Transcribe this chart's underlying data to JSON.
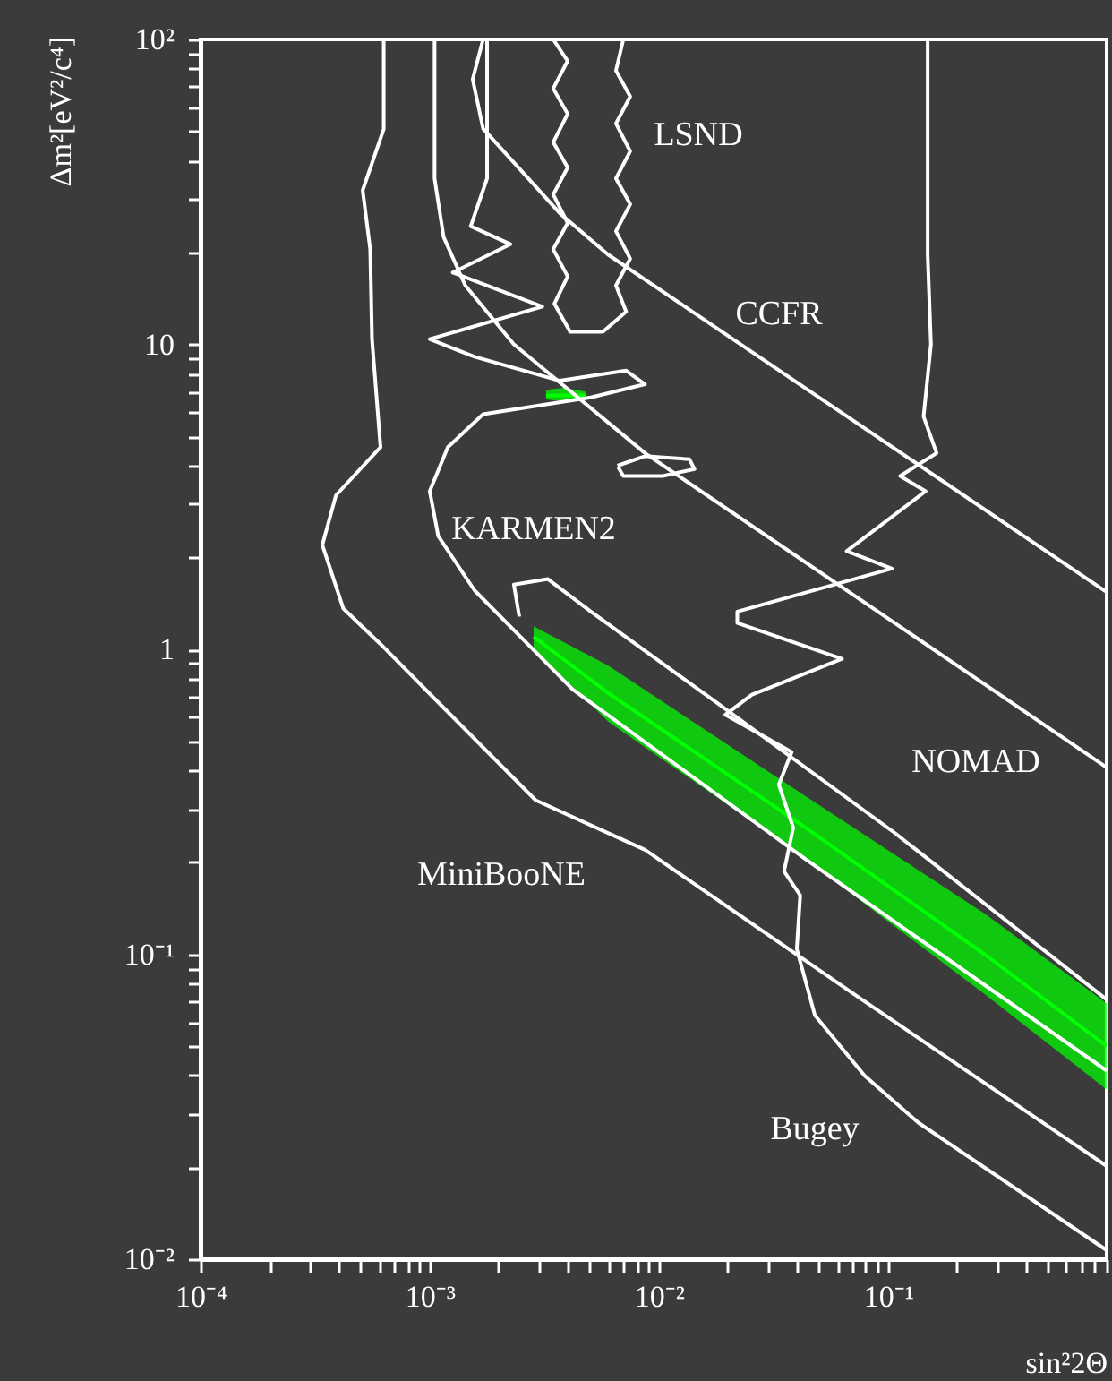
{
  "chart_data": {
    "type": "line",
    "log": "xy",
    "grid": false,
    "xlabel": "sin²2Θ",
    "ylabel": "Δm²[eV²/c⁴]",
    "xlim": [
      0.0001,
      0.9
    ],
    "ylim": [
      0.01,
      100
    ],
    "xticks": [
      {
        "value": 0.0001,
        "label": "10⁻⁴"
      },
      {
        "value": 0.0002,
        "label": null
      },
      {
        "value": 0.0003,
        "label": null
      },
      {
        "value": 0.0004,
        "label": null
      },
      {
        "value": 0.0005,
        "label": null
      },
      {
        "value": 0.0006,
        "label": null
      },
      {
        "value": 0.0007,
        "label": null
      },
      {
        "value": 0.0008,
        "label": null
      },
      {
        "value": 0.0009,
        "label": null
      },
      {
        "value": 0.001,
        "label": "10⁻³"
      },
      {
        "value": 0.002,
        "label": null
      },
      {
        "value": 0.003,
        "label": null
      },
      {
        "value": 0.004,
        "label": null
      },
      {
        "value": 0.005,
        "label": null
      },
      {
        "value": 0.006,
        "label": null
      },
      {
        "value": 0.007,
        "label": null
      },
      {
        "value": 0.008,
        "label": null
      },
      {
        "value": 0.009,
        "label": null
      },
      {
        "value": 0.01,
        "label": "10⁻²"
      },
      {
        "value": 0.02,
        "label": null
      },
      {
        "value": 0.03,
        "label": null
      },
      {
        "value": 0.04,
        "label": null
      },
      {
        "value": 0.05,
        "label": null
      },
      {
        "value": 0.06,
        "label": null
      },
      {
        "value": 0.07,
        "label": null
      },
      {
        "value": 0.08,
        "label": null
      },
      {
        "value": 0.09,
        "label": null
      },
      {
        "value": 0.1,
        "label": "10⁻¹"
      },
      {
        "value": 0.2,
        "label": null
      },
      {
        "value": 0.3,
        "label": null
      },
      {
        "value": 0.4,
        "label": null
      },
      {
        "value": 0.5,
        "label": null
      },
      {
        "value": 0.6,
        "label": null
      },
      {
        "value": 0.7,
        "label": null
      },
      {
        "value": 0.8,
        "label": null
      },
      {
        "value": 0.9,
        "label": null
      }
    ],
    "yticks": [
      {
        "value": 0.01,
        "label": "10⁻²"
      },
      {
        "value": 0.02,
        "label": null
      },
      {
        "value": 0.03,
        "label": null
      },
      {
        "value": 0.04,
        "label": null
      },
      {
        "value": 0.05,
        "label": null
      },
      {
        "value": 0.06,
        "label": null
      },
      {
        "value": 0.07,
        "label": null
      },
      {
        "value": 0.08,
        "label": null
      },
      {
        "value": 0.09,
        "label": null
      },
      {
        "value": 0.1,
        "label": "10⁻¹"
      },
      {
        "value": 0.2,
        "label": null
      },
      {
        "value": 0.3,
        "label": null
      },
      {
        "value": 0.4,
        "label": null
      },
      {
        "value": 0.5,
        "label": null
      },
      {
        "value": 0.6,
        "label": null
      },
      {
        "value": 0.7,
        "label": null
      },
      {
        "value": 0.8,
        "label": null
      },
      {
        "value": 0.9,
        "label": null
      },
      1,
      {
        "value": 2,
        "label": null
      },
      {
        "value": 3,
        "label": null
      },
      {
        "value": 4,
        "label": null
      },
      {
        "value": 5,
        "label": null
      },
      {
        "value": 6,
        "label": null
      },
      {
        "value": 7,
        "label": null
      },
      {
        "value": 8,
        "label": null
      },
      {
        "value": 9,
        "label": null
      },
      10,
      {
        "value": 20,
        "label": null
      },
      {
        "value": 30,
        "label": null
      },
      {
        "value": 40,
        "label": null
      },
      {
        "value": 50,
        "label": null
      },
      {
        "value": 60,
        "label": null
      },
      {
        "value": 70,
        "label": null
      },
      {
        "value": 80,
        "label": null
      },
      {
        "value": 90,
        "label": null
      },
      {
        "value": 100,
        "label": "10²"
      }
    ],
    "series": [
      {
        "type": "line",
        "color": "#00ff00",
        "x": [
          0.00284,
          0.006,
          0.0437,
          0.264,
          0.9
        ],
        "values": [
          1.1,
          0.72,
          0.26,
          0.1,
          0.05
        ],
        "lower": [
          1.01,
          0.58,
          0.205,
          0.074,
          0.036
        ],
        "upper": [
          1.19,
          0.885,
          0.33,
          0.136,
          0.069
        ]
      },
      {
        "type": "line",
        "color": "#00ff00",
        "x": [
          0.00322,
          0.00385,
          0.0048
        ],
        "values": [
          6.8,
          6.8,
          6.8
        ],
        "lower": [
          6.6,
          6.5,
          6.6
        ],
        "upper": [
          7.1,
          7.2,
          7.0
        ]
      },
      {
        "color": "#ffffff",
        "x": [
          0.00063,
          0.00063,
          0.00051,
          0.00055,
          0.00056,
          0.00061,
          0.00039,
          0.00034,
          0.00042,
          0.00061,
          0.00109,
          0.0029,
          0.0087,
          0.075,
          0.9
        ],
        "values": [
          100,
          50.8,
          32,
          20.5,
          10.4,
          4.6,
          3.2,
          2.2,
          1.36,
          1.04,
          0.67,
          0.32,
          0.22,
          0.072,
          0.0202
        ]
      },
      {
        "color": "#ffffff",
        "x": [
          0.00105,
          0.00105,
          0.00115,
          0.00143,
          0.00233,
          0.0087,
          0.25,
          0.9
        ],
        "values": [
          100,
          35,
          22.5,
          15.6,
          10,
          4.4,
          0.79,
          0.41
        ]
      },
      {
        "color": "#ffffff",
        "x": [
          0.00171,
          0.00154,
          0.00171,
          0.0037,
          0.006,
          0.9
        ],
        "values": [
          100,
          74,
          51,
          26.9,
          19.7,
          1.54
        ]
      },
      {
        "color": "#ffffff",
        "x": [
          0.149,
          0.149,
          0.154,
          0.143,
          0.163,
          0.113,
          0.146,
          0.066,
          0.104,
          0.022,
          0.022,
          0.063,
          0.0255,
          0.0195,
          0.038,
          0.0334,
          0.0386,
          0.0352,
          0.0414,
          0.04,
          0.048,
          0.079,
          0.136,
          0.9
        ],
        "values": [
          100,
          19.7,
          10,
          5.8,
          4.4,
          3.7,
          3.3,
          2.1,
          1.84,
          1.33,
          1.22,
          0.93,
          0.71,
          0.61,
          0.46,
          0.36,
          0.26,
          0.187,
          0.156,
          0.104,
          0.063,
          0.04,
          0.028,
          0.0107
        ]
      },
      {
        "color": "#ffffff",
        "x": [
          0.00178,
          0.00178,
          0.00151,
          0.00225,
          0.00126,
          0.0031,
          0.001,
          0.00157,
          0.0037,
          0.0072,
          0.0087,
          0.00505,
          0.00171,
          0.0012,
          0.001,
          0.00109,
          0.00157,
          0.00246,
          0.0042,
          0.0437,
          0.9
        ],
        "values": [
          100,
          35,
          24.4,
          21.3,
          17.2,
          13.3,
          10.4,
          9.1,
          7.6,
          8.2,
          7.4,
          6.7,
          5.9,
          4.6,
          3.3,
          2.35,
          1.56,
          1.11,
          0.74,
          0.205,
          0.0415
        ]
      },
      {
        "color": "#ffffff",
        "x": [
          0.00246,
          0.00233,
          0.00328,
          0.00505,
          0.0178,
          0.107,
          0.9
        ],
        "values": [
          1.28,
          1.63,
          1.7,
          1.33,
          0.67,
          0.25,
          0.071
        ]
      },
      {
        "color": "#ffffff",
        "x": [
          0.00346,
          0.004,
          0.00346,
          0.004,
          0.00346,
          0.004,
          0.00346,
          0.004,
          0.00346,
          0.004,
          0.0035,
          0.0041,
          0.0057,
          0.0072,
          0.0065,
          0.0075,
          0.0065,
          0.0075,
          0.0065,
          0.0075,
          0.0065,
          0.0075,
          0.0065,
          0.007
        ],
        "values": [
          100,
          85,
          69,
          57,
          46,
          38,
          31,
          25,
          20.5,
          16.7,
          13.6,
          11,
          11,
          12.8,
          15.6,
          19.1,
          23.5,
          28.8,
          35,
          43,
          53,
          65,
          79,
          100
        ]
      },
      {
        "color": "#ffffff",
        "x": [
          0.0066,
          0.0087,
          0.0136,
          0.0143,
          0.0104,
          0.007,
          0.00665
        ],
        "values": [
          4.0,
          4.3,
          4.2,
          3.9,
          3.7,
          3.7,
          3.95
        ]
      }
    ],
    "annotations": [
      "LSND",
      "CCFR",
      "KARMEN2",
      "NOMAD",
      "MiniBooNE",
      "Bugey"
    ]
  }
}
